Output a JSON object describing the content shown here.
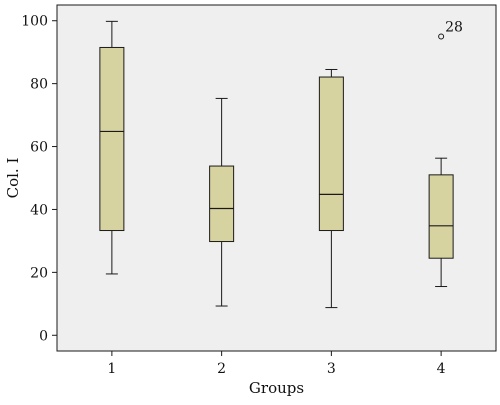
{
  "chart_data": {
    "type": "box",
    "xlabel": "Groups",
    "ylabel": "Col. I",
    "ylim": [
      -5,
      105
    ],
    "yticks": [
      0,
      20,
      40,
      60,
      80,
      100
    ],
    "categories": [
      "1",
      "2",
      "3",
      "4"
    ],
    "boxes": [
      {
        "category": "1",
        "whisker_low": 19.5,
        "q1": 33.3,
        "median": 64.8,
        "q3": 91.5,
        "whisker_high": 99.8
      },
      {
        "category": "2",
        "whisker_low": 9.3,
        "q1": 29.8,
        "median": 40.3,
        "q3": 53.8,
        "whisker_high": 75.3
      },
      {
        "category": "3",
        "whisker_low": 8.8,
        "q1": 33.3,
        "median": 44.8,
        "q3": 82.1,
        "whisker_high": 84.5
      },
      {
        "category": "4",
        "whisker_low": 15.5,
        "q1": 24.5,
        "median": 34.8,
        "q3": 51.0,
        "whisker_high": 56.3
      }
    ],
    "outliers": [
      {
        "category": "4",
        "value": 95.0,
        "label": "28"
      }
    ],
    "grid": false,
    "colors": {
      "plot_background": "#efefef",
      "box_fill": "#d7d3a0",
      "box_stroke": "#1a1a1a",
      "axis": "#1a1a1a"
    }
  }
}
